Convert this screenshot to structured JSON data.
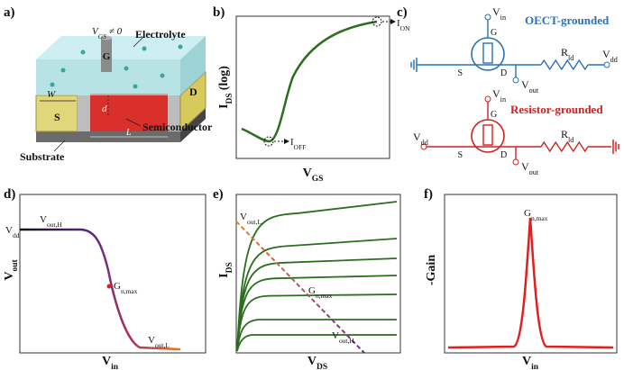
{
  "panel_a": {
    "label": "a)",
    "gate_voltage": [
      "V",
      "GS",
      "≠ 0"
    ],
    "electrolyte": "Electrolyte",
    "gate": "G",
    "drain": "D",
    "source": "S",
    "width": "W",
    "thickness": "d",
    "length": "L",
    "semiconductor": "Semiconductor",
    "substrate": "Substrate"
  },
  "panel_b": {
    "label": "b)",
    "y_label": [
      "I",
      "DS",
      "(log)"
    ],
    "x_label": [
      "V",
      "GS"
    ],
    "on_label": [
      "I",
      "ON"
    ],
    "off_label": [
      "I",
      "OFF"
    ]
  },
  "panel_c": {
    "label": "c)",
    "oect_grounded": {
      "title": "OECT-grounded",
      "input": [
        "V",
        "in"
      ],
      "gate": "G",
      "source": "S",
      "drain": "D",
      "resistor": [
        "R",
        "ld"
      ],
      "supply": [
        "V",
        "dd"
      ],
      "output": [
        "V",
        "out"
      ]
    },
    "resistor_grounded": {
      "title": "Resistor-grounded",
      "input": [
        "V",
        "in"
      ],
      "gate": "G",
      "source": "S",
      "drain": "D",
      "resistor": [
        "R",
        "ld"
      ],
      "supply": [
        "V",
        "dd"
      ],
      "output": [
        "V",
        "out"
      ]
    }
  },
  "panel_d": {
    "label": "d)",
    "y_label": [
      "V",
      "out"
    ],
    "x_label": [
      "V",
      "in"
    ],
    "supply": [
      "V",
      "dd"
    ],
    "high": [
      "V",
      "out,H"
    ],
    "gain_point": [
      "G",
      "n,max"
    ],
    "low": [
      "V",
      "out,L"
    ]
  },
  "panel_e": {
    "label": "e)",
    "y_label": [
      "I",
      "DS"
    ],
    "x_label": [
      "V",
      "DS"
    ],
    "low": [
      "V",
      "out,L"
    ],
    "gain_point": [
      "G",
      "n,max"
    ],
    "high": [
      "V",
      "out,H"
    ]
  },
  "panel_f": {
    "label": "f)",
    "y_label": "-Gain",
    "x_label": [
      "V",
      "in"
    ],
    "gain_point": [
      "G",
      "n,max"
    ]
  }
}
